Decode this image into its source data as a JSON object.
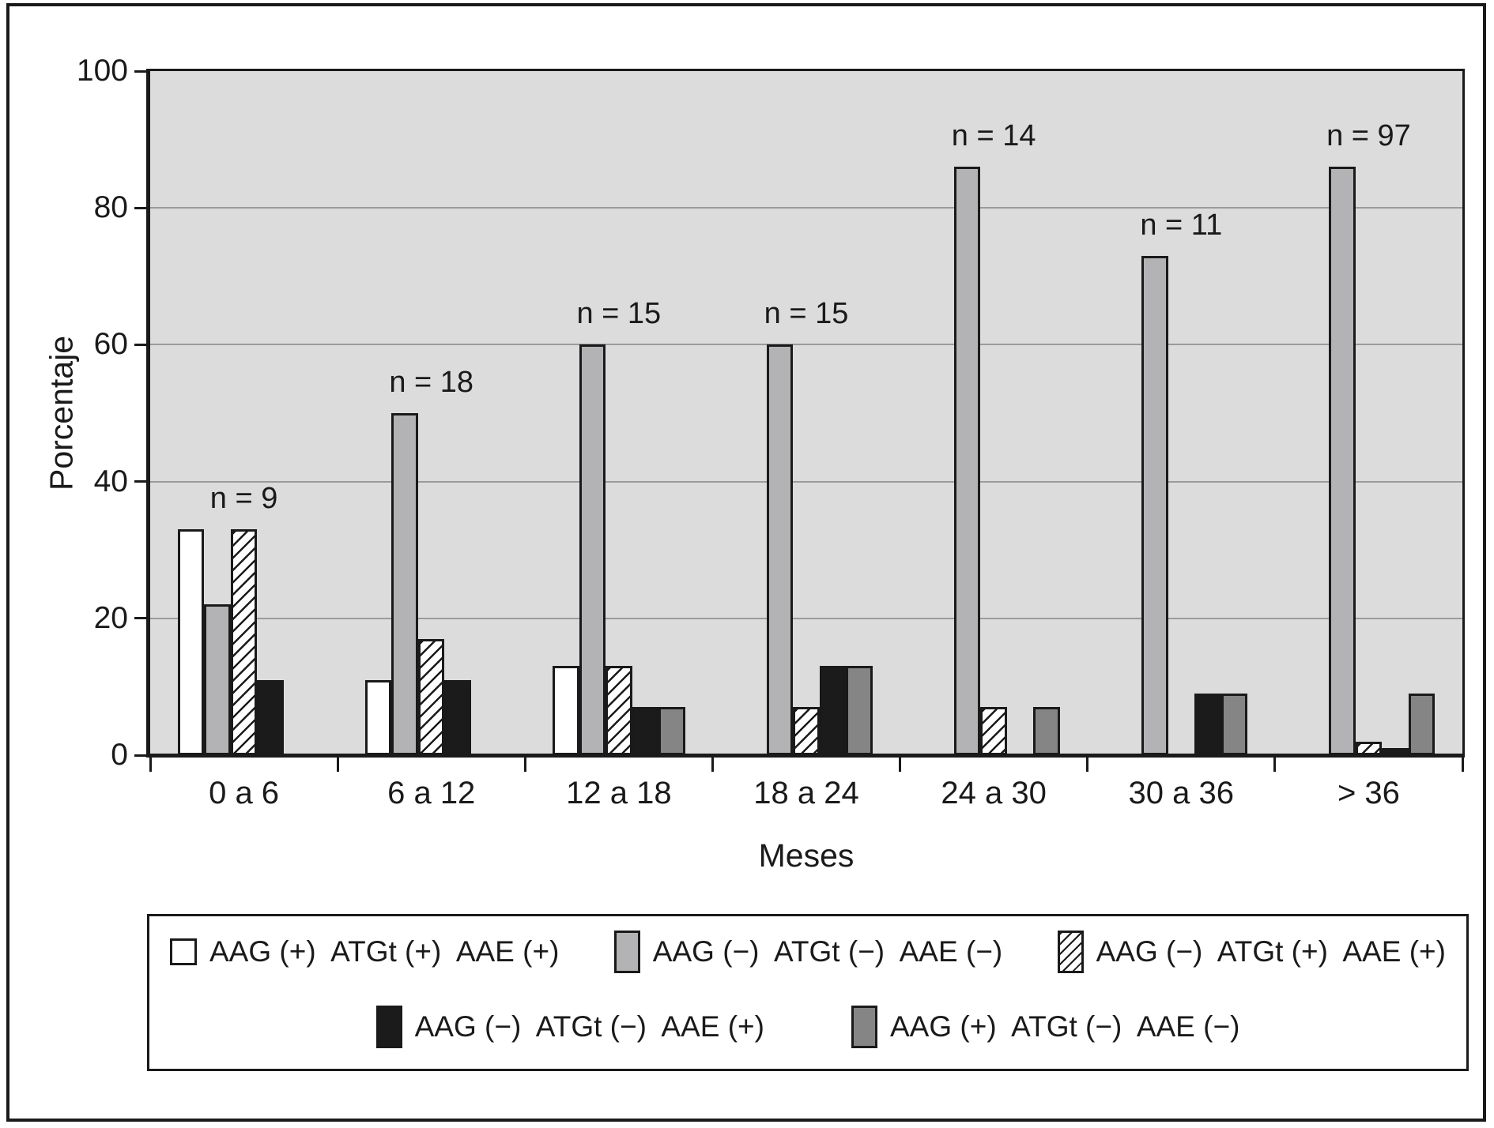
{
  "figure": {
    "background": "#ffffff",
    "border_color": "#1a1a1a"
  },
  "chart_data": {
    "type": "bar",
    "title": "",
    "xlabel": "Meses",
    "ylabel": "Porcentaje",
    "ylim": [
      0,
      100
    ],
    "yticks": [
      0,
      20,
      40,
      60,
      80,
      100
    ],
    "ytick_labels": [
      "0",
      "20",
      "40",
      "60",
      "80",
      "100"
    ],
    "grid": "horizontal",
    "gridline_values": [
      20,
      40,
      60,
      80
    ],
    "plot_background": "#dcdcdc",
    "gridline_color": "#9b9b9b",
    "legend_position": "bottom-box",
    "categories": [
      "0 a 6",
      "6 a 12",
      "12 a 18",
      "18 a 24",
      "24 a 30",
      "30 a 36",
      "> 36"
    ],
    "n_labels": [
      "n = 9",
      "n = 18",
      "n = 15",
      "n = 15",
      "n = 14",
      "n = 11",
      "n = 97"
    ],
    "series": [
      {
        "name": "AAG (+)  ATGt (+)  AAE (+)",
        "style": "white",
        "color": "#ffffff",
        "values": [
          33,
          11,
          13,
          0,
          0,
          0,
          0
        ]
      },
      {
        "name": "AAG (−)  ATGt (−)  AAE (−)",
        "style": "gray",
        "color": "#b3b3b5",
        "values": [
          22,
          50,
          60,
          60,
          86,
          73,
          86
        ]
      },
      {
        "name": "AAG (−)  ATGt (+)  AAE (+)",
        "style": "hatch",
        "color": "hatch-diagonal",
        "values": [
          33,
          17,
          13,
          7,
          7,
          0,
          2
        ]
      },
      {
        "name": "AAG (−)  ATGt (−)  AAE (+)",
        "style": "black",
        "color": "#1b1b1b",
        "values": [
          11,
          11,
          7,
          13,
          0,
          9,
          1
        ]
      },
      {
        "name": "AAG (+)  ATGt (−)  AAE (−)",
        "style": "darkgray",
        "color": "#858585",
        "values": [
          0,
          0,
          7,
          13,
          7,
          9,
          9
        ]
      }
    ]
  }
}
